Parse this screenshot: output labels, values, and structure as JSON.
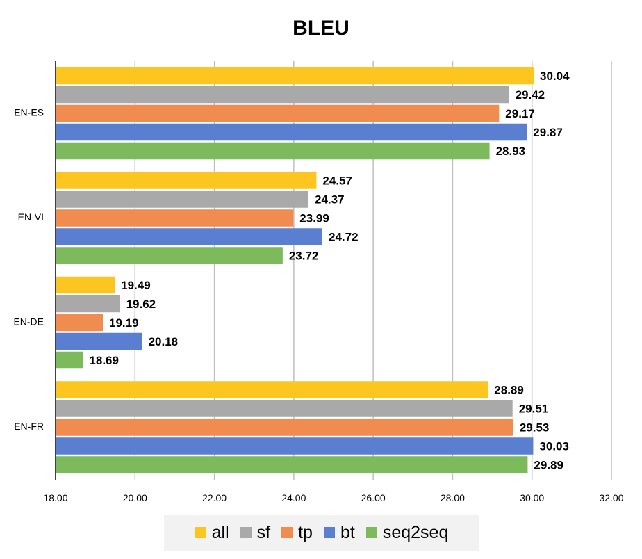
{
  "chart_data": {
    "type": "bar",
    "orientation": "horizontal",
    "title": "BLEU",
    "xlabel": "",
    "ylabel": "",
    "xlim": [
      18.0,
      32.0
    ],
    "xticks": [
      "18.00",
      "20.00",
      "22.00",
      "24.00",
      "26.00",
      "28.00",
      "30.00",
      "32.00"
    ],
    "grid": true,
    "legend_position": "bottom",
    "categories": [
      "EN-ES",
      "EN-VI",
      "EN-DE",
      "EN-FR"
    ],
    "series": [
      {
        "name": "all",
        "color": "#fdc520",
        "values": [
          30.04,
          24.57,
          19.49,
          28.89
        ],
        "labels": [
          "30.04",
          "24.57",
          "19.49",
          "28.89"
        ]
      },
      {
        "name": "sf",
        "color": "#a9a9a9",
        "values": [
          29.42,
          24.37,
          19.62,
          29.51
        ],
        "labels": [
          "29.42",
          "24.37",
          "19.62",
          "29.51"
        ]
      },
      {
        "name": "tp",
        "color": "#f08c4f",
        "values": [
          29.17,
          23.99,
          19.19,
          29.53
        ],
        "labels": [
          "29.17",
          "23.99",
          "19.19",
          "29.53"
        ]
      },
      {
        "name": "bt",
        "color": "#5a7fd0",
        "values": [
          29.87,
          24.72,
          20.18,
          30.03
        ],
        "labels": [
          "29.87",
          "24.72",
          "20.18",
          "30.03"
        ]
      },
      {
        "name": "seq2seq",
        "color": "#7cba5c",
        "values": [
          28.93,
          23.72,
          18.69,
          29.89
        ],
        "labels": [
          "28.93",
          "23.72",
          "18.69",
          "29.89"
        ]
      }
    ]
  }
}
